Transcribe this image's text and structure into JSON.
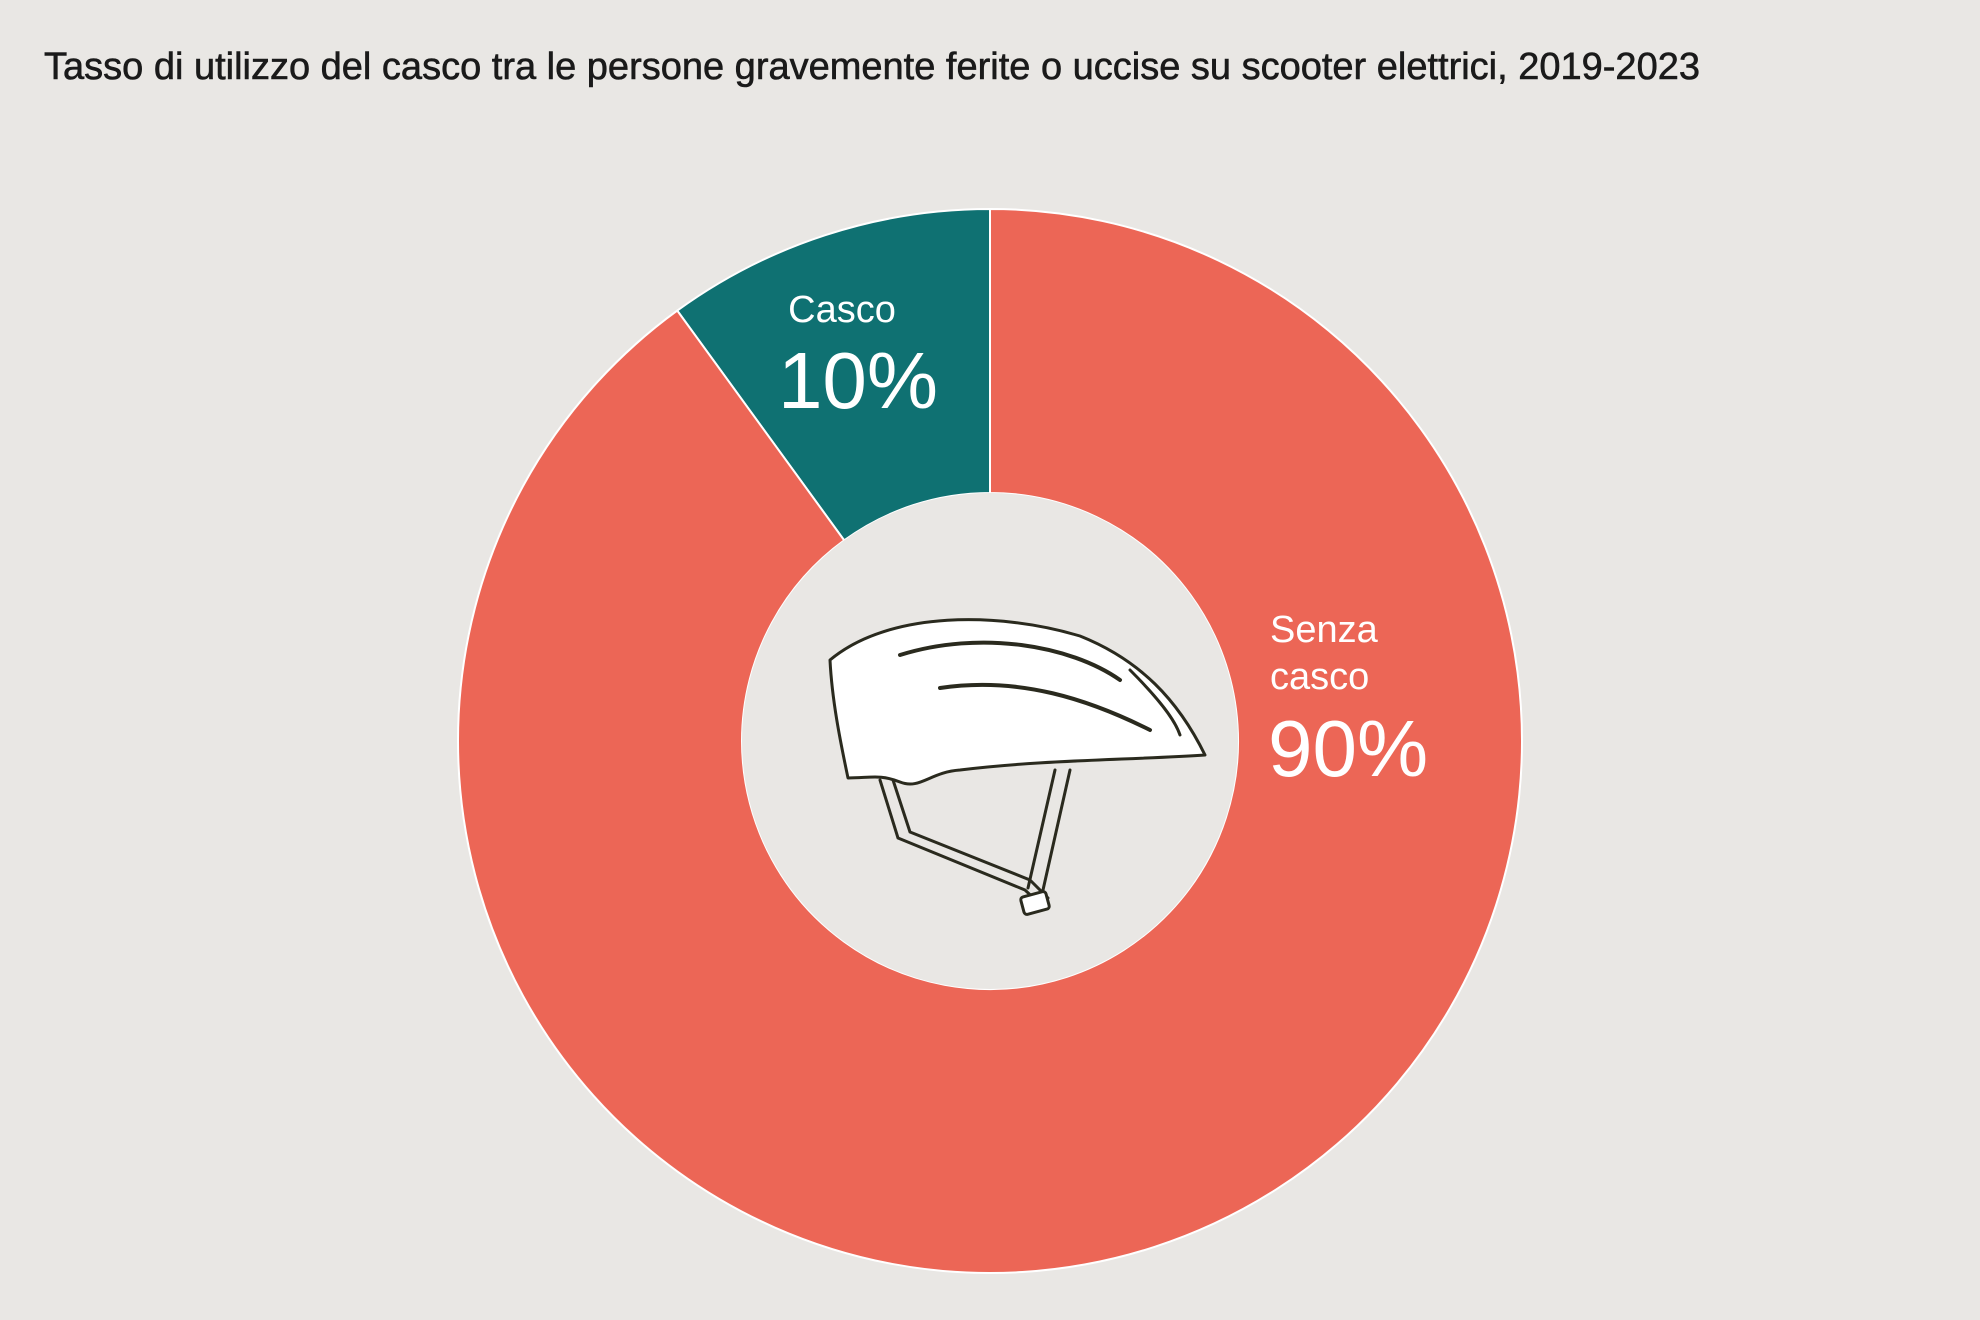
{
  "title": "Tasso di utilizzo del casco tra le persone gravemente ferite o uccise su scooter elettrici, 2019-2023",
  "center_icon": "helmet-icon",
  "colors": {
    "background": "#e9e7e4",
    "casco": "#0f7172",
    "senza_casco": "#ec6656",
    "label_text": "#ffffff",
    "icon_stroke": "#2a2a1e"
  },
  "chart_data": {
    "type": "pie",
    "variant": "donut",
    "title": "Tasso di utilizzo del casco tra le persone gravemente ferite o uccise su scooter elettrici, 2019-2023",
    "slices": [
      {
        "name": "Casco",
        "value": 10,
        "value_label": "10%",
        "color": "#0f7172"
      },
      {
        "name": "Senza casco",
        "name_lines": [
          "Senza",
          "casco"
        ],
        "value": 90,
        "value_label": "90%",
        "color": "#ec6656"
      }
    ]
  }
}
